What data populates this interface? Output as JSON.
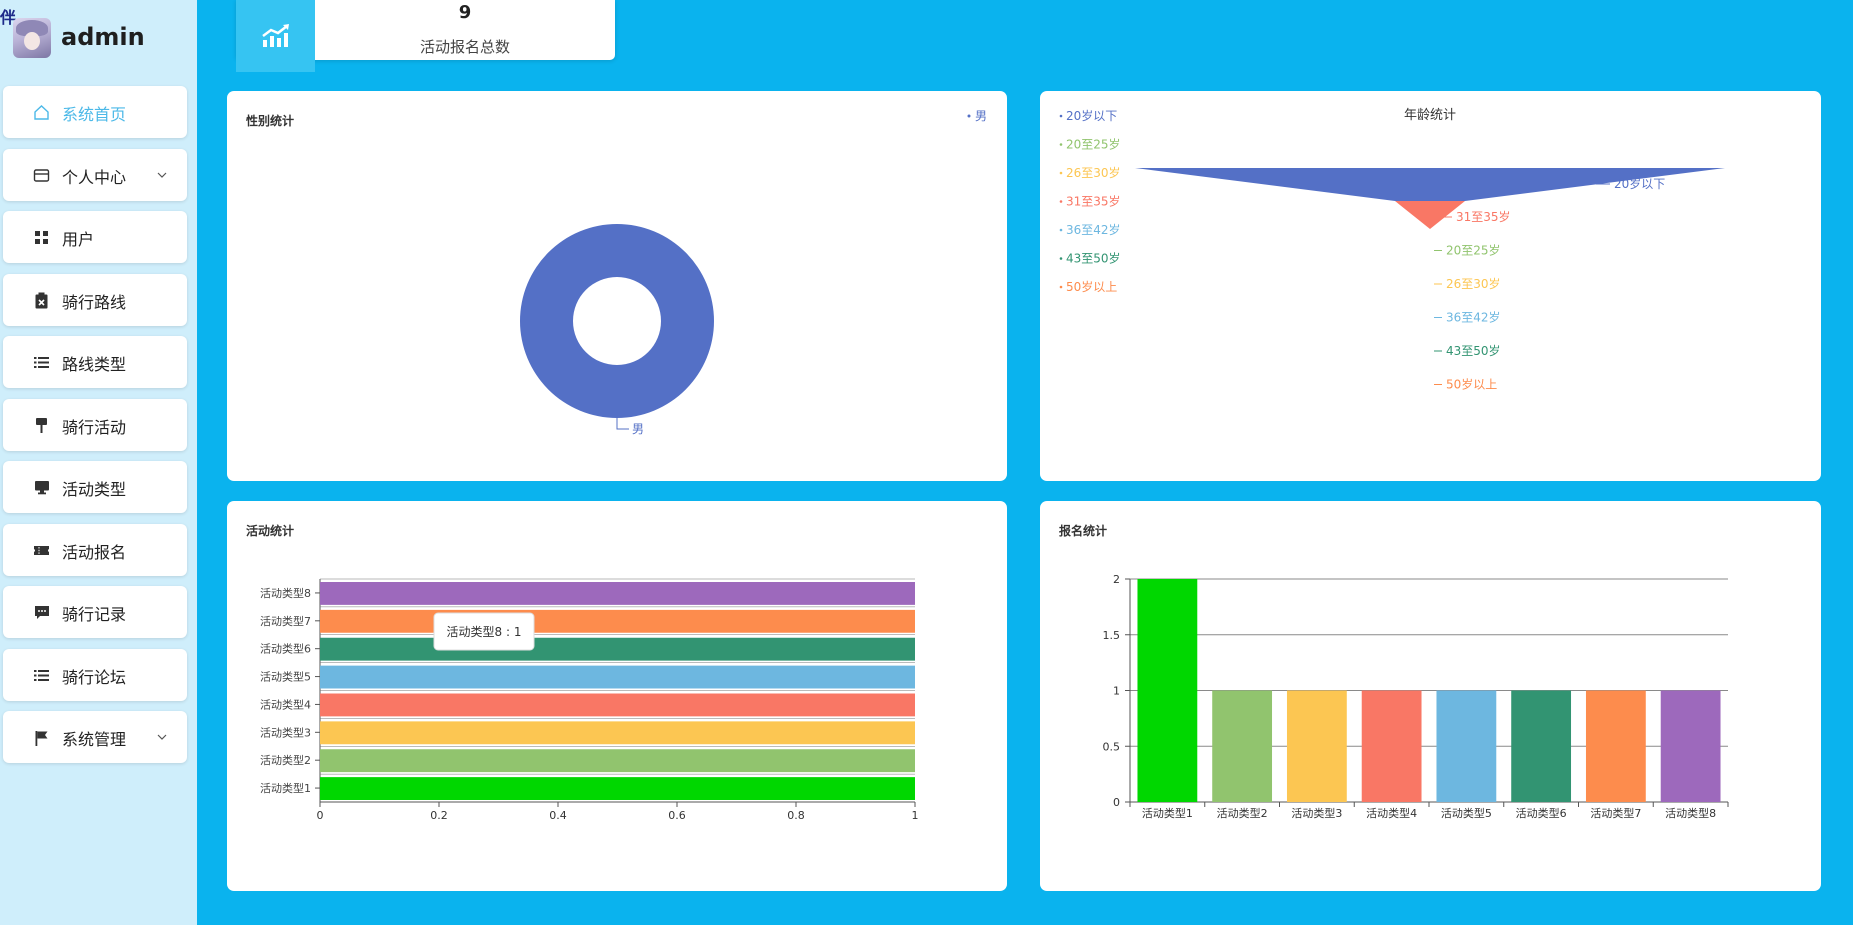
{
  "user": {
    "name": "admin",
    "badge": "伴"
  },
  "menu": [
    {
      "label": "系统首页",
      "icon": "home-icon",
      "active": true
    },
    {
      "label": "个人中心",
      "icon": "wallet-icon",
      "has_children": true
    },
    {
      "label": "用户",
      "icon": "grid-icon"
    },
    {
      "label": "骑行路线",
      "icon": "clipboard-icon"
    },
    {
      "label": "路线类型",
      "icon": "list-icon"
    },
    {
      "label": "骑行活动",
      "icon": "flag-pennant-icon"
    },
    {
      "label": "活动类型",
      "icon": "monitor-icon"
    },
    {
      "label": "活动报名",
      "icon": "ticket-icon"
    },
    {
      "label": "骑行记录",
      "icon": "chat-icon"
    },
    {
      "label": "骑行论坛",
      "icon": "list-icon"
    },
    {
      "label": "系统管理",
      "icon": "flag-icon",
      "has_children": true
    }
  ],
  "stat": {
    "value": "9",
    "label": "活动报名总数",
    "icon": "trend-chart-icon"
  },
  "panels": {
    "gender": {
      "title": "性别统计"
    },
    "age": {
      "title": "年龄统计"
    },
    "activity": {
      "title": "活动统计"
    },
    "signup": {
      "title": "报名统计"
    }
  },
  "colors": {
    "background": "#0ab3ee",
    "sidebar": "#cfeefb",
    "accent": "#4cb9e8",
    "palette": [
      "#00d700",
      "#91c46e",
      "#fcc652",
      "#f97765",
      "#6db7e0",
      "#329472",
      "#fd8c4d",
      "#9d69bc"
    ]
  },
  "chart_data": [
    {
      "type": "pie",
      "title": "性别统计",
      "donut": true,
      "legend": [
        "男"
      ],
      "legend_position": "top-right",
      "slices": [
        {
          "name": "男",
          "value": 1,
          "color": "#5470c6"
        }
      ]
    },
    {
      "type": "funnel",
      "title": "年龄统计",
      "legend": [
        "20岁以下",
        "20至25岁",
        "26至30岁",
        "31至35岁",
        "36至42岁",
        "43至50岁",
        "50岁以上"
      ],
      "legend_position": "top-left",
      "series": [
        {
          "name": "20岁以下",
          "value": 2,
          "color": "#5470c6"
        },
        {
          "name": "31至35岁",
          "value": 1,
          "color": "#f97765"
        },
        {
          "name": "20至25岁",
          "value": 0,
          "color": "#91c46e"
        },
        {
          "name": "26至30岁",
          "value": 0,
          "color": "#fcc652"
        },
        {
          "name": "36至42岁",
          "value": 0,
          "color": "#6db7e0"
        },
        {
          "name": "43至50岁",
          "value": 0,
          "color": "#329472"
        },
        {
          "name": "50岁以上",
          "value": 0,
          "color": "#fd8c4d"
        }
      ]
    },
    {
      "type": "bar",
      "orientation": "horizontal",
      "title": "活动统计",
      "categories": [
        "活动类型1",
        "活动类型2",
        "活动类型3",
        "活动类型4",
        "活动类型5",
        "活动类型6",
        "活动类型7",
        "活动类型8"
      ],
      "values": [
        1,
        1,
        1,
        1,
        1,
        1,
        1,
        1
      ],
      "xlim": [
        0,
        1
      ],
      "xticks": [
        "0",
        "0.2",
        "0.4",
        "0.6",
        "0.8",
        "1"
      ],
      "tooltip": "活动类型8 : 1"
    },
    {
      "type": "bar",
      "title": "报名统计",
      "categories": [
        "活动类型1",
        "活动类型2",
        "活动类型3",
        "活动类型4",
        "活动类型5",
        "活动类型6",
        "活动类型7",
        "活动类型8"
      ],
      "values": [
        2,
        1,
        1,
        1,
        1,
        1,
        1,
        1
      ],
      "ylim": [
        0,
        2
      ],
      "yticks": [
        "0",
        "0.5",
        "1",
        "1.5",
        "2"
      ],
      "grid": true
    }
  ]
}
